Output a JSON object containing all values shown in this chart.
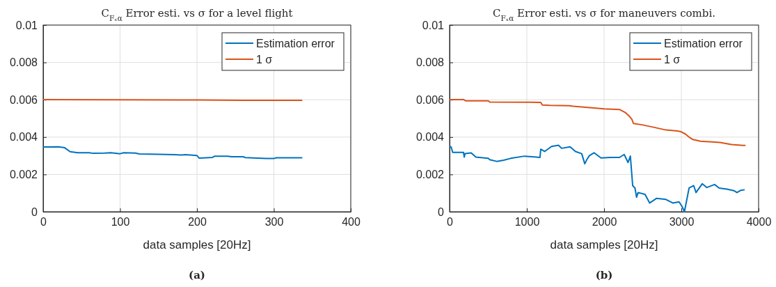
{
  "chart_data": [
    {
      "type": "line",
      "title": "C$_{Fₓα}$ Error esti. vs σ for a level flight",
      "xlabel": "data samples [20Hz]",
      "annotations": [
        "(a)"
      ],
      "xlim": [
        0,
        400
      ],
      "xticks": [
        0,
        100,
        200,
        300,
        400
      ],
      "ylim": [
        0,
        0.01
      ],
      "yticks": [
        0,
        0.002,
        0.004,
        0.006,
        0.008,
        0.01
      ],
      "grid": true,
      "legend": "top right",
      "line_style": "solid",
      "marker": "none",
      "series": [
        {
          "name": "Estimation error",
          "color": "#0072bd",
          "x": [
            0,
            20,
            28,
            35,
            45,
            60,
            65,
            80,
            88,
            100,
            105,
            120,
            125,
            150,
            170,
            180,
            185,
            200,
            203,
            220,
            223,
            240,
            245,
            260,
            263,
            290,
            300,
            303,
            337
          ],
          "values": [
            0.00347,
            0.00348,
            0.00343,
            0.00322,
            0.00316,
            0.00316,
            0.00313,
            0.00314,
            0.00316,
            0.00311,
            0.00316,
            0.00314,
            0.0031,
            0.00308,
            0.00306,
            0.00304,
            0.00306,
            0.00301,
            0.00287,
            0.00291,
            0.00298,
            0.00298,
            0.00295,
            0.00295,
            0.0029,
            0.00285,
            0.00285,
            0.00289,
            0.00289
          ]
        },
        {
          "name": "1 σ",
          "color": "#d95319",
          "x": [
            0,
            100,
            200,
            260,
            337
          ],
          "values": [
            0.00601,
            0.006,
            0.00599,
            0.00597,
            0.00597
          ]
        }
      ]
    },
    {
      "type": "line",
      "title": "C$_{Fₓα}$ Error esti. vs σ for maneuvers combi.",
      "xlabel": "data samples [20Hz]",
      "annotations": [
        "(b)"
      ],
      "xlim": [
        0,
        4000
      ],
      "xticks": [
        0,
        1000,
        2000,
        3000,
        4000
      ],
      "ylim": [
        0,
        0.01
      ],
      "yticks": [
        0,
        0.002,
        0.004,
        0.006,
        0.008,
        0.01
      ],
      "grid": true,
      "legend": "top right",
      "line_style": "solid",
      "marker": "none",
      "series": [
        {
          "name": "Estimation error",
          "color": "#0072bd",
          "x": [
            0,
            20,
            40,
            180,
            190,
            200,
            280,
            340,
            500,
            520,
            610,
            700,
            790,
            970,
            1170,
            1180,
            1230,
            1320,
            1410,
            1450,
            1560,
            1630,
            1710,
            1750,
            1780,
            1810,
            1870,
            1960,
            2080,
            2200,
            2260,
            2310,
            2340,
            2370,
            2400,
            2420,
            2440,
            2530,
            2590,
            2680,
            2800,
            2890,
            2970,
            3010,
            3040,
            3100,
            3160,
            3190,
            3270,
            3330,
            3430,
            3490,
            3590,
            3680,
            3720,
            3770,
            3820
          ],
          "values": [
            0.0035,
            0.00347,
            0.00318,
            0.00318,
            0.00293,
            0.00312,
            0.00315,
            0.00293,
            0.00286,
            0.00279,
            0.0027,
            0.00276,
            0.00286,
            0.00298,
            0.00291,
            0.00335,
            0.00323,
            0.0035,
            0.00356,
            0.0034,
            0.00348,
            0.00323,
            0.00311,
            0.00257,
            0.00282,
            0.00301,
            0.00316,
            0.00288,
            0.00291,
            0.00291,
            0.00307,
            0.00264,
            0.00298,
            0.0014,
            0.00127,
            0.00078,
            0.00103,
            0.00093,
            0.00047,
            0.00072,
            0.00066,
            0.00047,
            0.00053,
            0.00028,
            0,
            0.00127,
            0.0014,
            0.00103,
            0.0015,
            0.0013,
            0.00146,
            0.00127,
            0.00121,
            0.00113,
            0.00103,
            0.00115,
            0.00118
          ]
        },
        {
          "name": "1 σ",
          "color": "#d95319",
          "x": [
            0,
            180,
            210,
            500,
            520,
            1180,
            1200,
            1300,
            1550,
            1600,
            2000,
            2200,
            2280,
            2330,
            2360,
            2380,
            2500,
            2650,
            2800,
            2950,
            3000,
            3050,
            3100,
            3150,
            3250,
            3400,
            3500,
            3650,
            3800,
            3830
          ],
          "values": [
            0.00601,
            0.00601,
            0.00594,
            0.00594,
            0.00588,
            0.00586,
            0.00572,
            0.0057,
            0.00568,
            0.00565,
            0.00551,
            0.00548,
            0.0053,
            0.0051,
            0.00495,
            0.00473,
            0.00465,
            0.00452,
            0.00438,
            0.00433,
            0.00428,
            0.00417,
            0.004,
            0.00387,
            0.00378,
            0.00374,
            0.00371,
            0.0036,
            0.00355,
            0.00355
          ]
        }
      ]
    }
  ]
}
